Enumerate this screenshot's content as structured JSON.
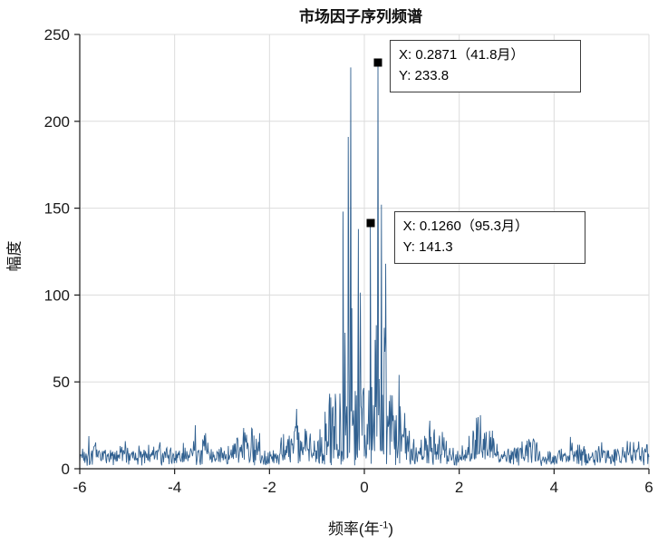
{
  "chart_data": {
    "type": "line",
    "title": "市场因子序列频谱",
    "xlabel": "频率(年⁻¹)",
    "xlabel_prefix": "频率(年",
    "xlabel_sup": "-1",
    "xlabel_suffix": ")",
    "ylabel": "幅度",
    "xlim": [
      -6,
      6
    ],
    "ylim": [
      0,
      250
    ],
    "xticks": [
      -6,
      -4,
      -2,
      0,
      2,
      4,
      6
    ],
    "yticks": [
      0,
      50,
      100,
      150,
      200,
      250
    ],
    "grid": "on",
    "legend": "none",
    "line_color": "#2f5f8f",
    "grid_color": "#dcdcdc",
    "axis_color": "#1a1a1a",
    "datatips": [
      {
        "x": 0.2871,
        "y": 233.8,
        "label_x": "X: 0.2871（41.8月）",
        "label_y": "Y: 233.8"
      },
      {
        "x": 0.126,
        "y": 141.3,
        "label_x": "X: 0.1260（95.3月）",
        "label_y": "Y: 141.3"
      }
    ],
    "synthesis": {
      "seed": 1337,
      "step": 0.012,
      "floor_base": 1.5,
      "floor_rand": 9,
      "spike_pow": 1.7,
      "lobes": [
        {
          "c": 0.0,
          "a": 55,
          "w": 0.16
        },
        {
          "c": 0.27,
          "a": 118,
          "w": 0.34
        },
        {
          "c": 0.8,
          "a": 40,
          "w": 0.22
        },
        {
          "c": 1.45,
          "a": 36,
          "w": 0.3
        },
        {
          "c": 2.45,
          "a": 32,
          "w": 0.33
        },
        {
          "c": 3.5,
          "a": 21,
          "w": 0.3
        },
        {
          "c": 4.4,
          "a": 10,
          "w": 0.3
        },
        {
          "c": 5.0,
          "a": 9,
          "w": 0.25
        },
        {
          "c": 5.7,
          "a": 15,
          "w": 0.3
        }
      ],
      "peaks": [
        {
          "x": -0.45,
          "y": 148
        },
        {
          "x": -0.34,
          "y": 191
        },
        {
          "x": -0.287,
          "y": 231
        },
        {
          "x": -0.126,
          "y": 138
        },
        {
          "x": 0.126,
          "y": 141.3
        },
        {
          "x": 0.2871,
          "y": 233.8
        },
        {
          "x": 0.36,
          "y": 152
        },
        {
          "x": 0.45,
          "y": 118
        }
      ]
    }
  }
}
